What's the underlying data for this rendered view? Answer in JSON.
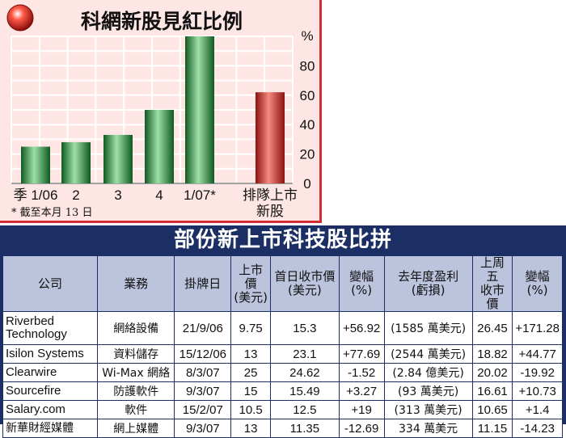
{
  "chart_data": {
    "type": "bar",
    "title": "科網新股見紅比例",
    "categories": [
      "季 1/06",
      "2",
      "3",
      "4",
      "1/07*",
      "排隊上市\n新股"
    ],
    "values": [
      25,
      28,
      33,
      50,
      100,
      62
    ],
    "ylabel": "%",
    "ylim": [
      0,
      100
    ],
    "yticks": [
      0,
      20,
      40,
      60,
      80
    ],
    "grid": true,
    "bar_colors": [
      "#2f9a48",
      "#2f9a48",
      "#2f9a48",
      "#2f9a48",
      "#2f9a48",
      "#d4332e"
    ],
    "footnote": "* 截至本月 13 日"
  },
  "colors": {
    "chart_bg": "#fde6e3",
    "accent_red": "#d22d32",
    "table_header_bg": "#bcc3dd",
    "table_frame": "#1b2f64"
  },
  "table": {
    "title": "部份新上市科技股比拼",
    "headers": [
      "公司",
      "業務",
      "掛牌日",
      "上市價\n(美元)",
      "首日收市價\n(美元)",
      "變幅\n(%)",
      "去年度盈利\n(虧損)",
      "上周五\n收市價",
      "變幅\n(%)"
    ],
    "rows": [
      [
        "Riverbed\nTechnology",
        "網絡設備",
        "21/9/06",
        "9.75",
        "15.3",
        "+56.92",
        "(1585 萬美元)",
        "26.45",
        "+171.28"
      ],
      [
        "Isilon Systems",
        "資料儲存",
        "15/12/06",
        "13",
        "23.1",
        "+77.69",
        "(2544 萬美元)",
        "18.82",
        "+44.77"
      ],
      [
        "Clearwire",
        "Wi-Max 網絡",
        "8/3/07",
        "25",
        "24.62",
        "-1.52",
        "(2.84 億美元)",
        "20.02",
        "-19.92"
      ],
      [
        "Sourcefire",
        "防護軟件",
        "9/3/07",
        "15",
        "15.49",
        "+3.27",
        "(93 萬美元)",
        "16.61",
        "+10.73"
      ],
      [
        "Salary.com",
        "軟件",
        "15/2/07",
        "10.5",
        "12.5",
        "+19",
        "(313 萬美元)",
        "10.65",
        "+1.4"
      ],
      [
        "新華財經媒體",
        "網上媒體",
        "9/3/07",
        "13",
        "11.35",
        "-12.69",
        "334 萬美元",
        "11.15",
        "-14.23"
      ]
    ]
  }
}
